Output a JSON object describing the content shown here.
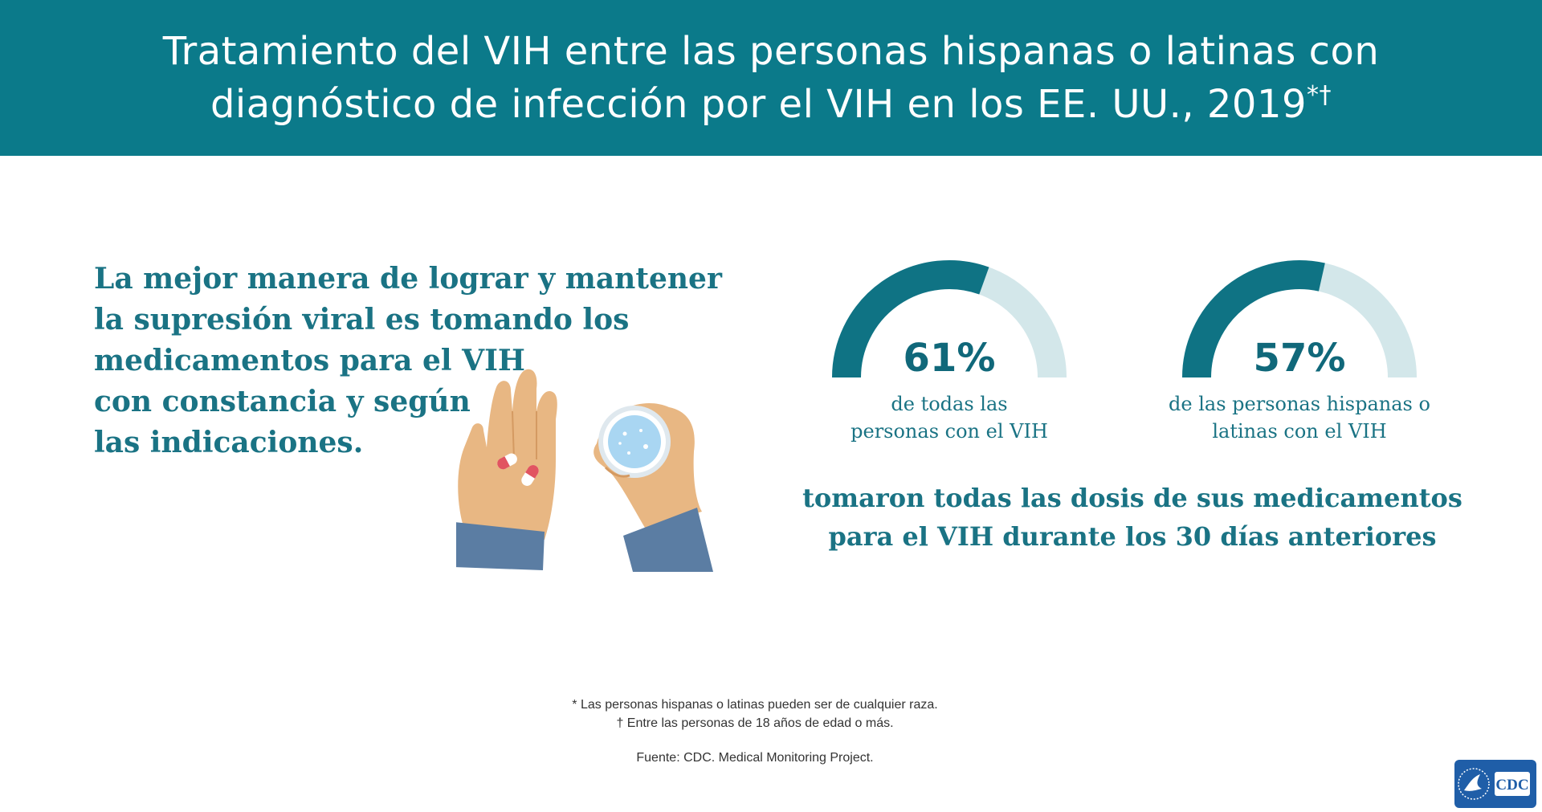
{
  "header": {
    "title_line1": "Tratamiento del VIH entre las personas hispanas o latinas con",
    "title_line2": "diagnóstico de infección por el VIH en los EE. UU., 2019",
    "title_marks": "*†"
  },
  "intro": {
    "lines": [
      "La mejor manera de lograr y mantener",
      "la supresión viral es tomando los",
      "medicamentos para el VIH",
      "con constancia y según",
      "las indicaciones."
    ]
  },
  "gauges": [
    {
      "value": 61,
      "value_label": "61%",
      "label_lines": [
        "de todas las",
        "personas con el VIH"
      ]
    },
    {
      "value": 57,
      "value_label": "57%",
      "label_lines": [
        "de las personas hispanas o",
        "latinas con el VIH"
      ]
    }
  ],
  "summary": {
    "lines": [
      "tomaron todas las dosis de sus medicamentos",
      "para el VIH durante los 30 días anteriores"
    ]
  },
  "footnotes": {
    "note1": "* Las personas hispanas o latinas pueden ser de cualquier raza.",
    "note2": "† Entre las personas de 18 años de edad o más.",
    "source": "Fuente: CDC. Medical Monitoring Project."
  },
  "logo": {
    "text": "CDC"
  },
  "colors": {
    "header_bg": "#0b7a8a",
    "gauge_fill": "#0f7384",
    "gauge_track": "#d3e7ea",
    "text_teal": "#1a7384",
    "logo_blue": "#1f5ea8"
  },
  "icons": [
    "hand-with-pills-icon",
    "hand-with-glass-icon",
    "hhs-eagle-icon"
  ]
}
